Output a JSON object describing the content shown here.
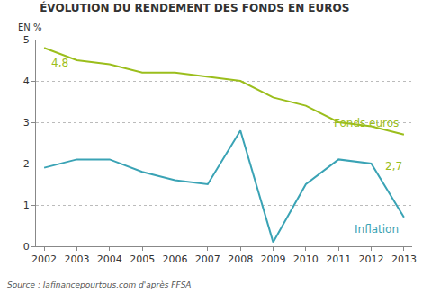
{
  "chart_data": {
    "type": "line",
    "title": "ÉVOLUTION DU RENDEMENT DES FONDS EN EUROS",
    "ylabel": "EN %",
    "source": "Source : lafinancepourtous.com d'après FFSA",
    "categories": [
      "2002",
      "2003",
      "2004",
      "2005",
      "2006",
      "2007",
      "2008",
      "2009",
      "2010",
      "2011",
      "2012",
      "2013"
    ],
    "series": [
      {
        "name": "Fonds euros",
        "color": "#9bbe1c",
        "values": [
          4.8,
          4.5,
          4.4,
          4.2,
          4.2,
          4.1,
          4.0,
          3.6,
          3.4,
          3.0,
          2.9,
          2.7
        ],
        "value_labels": [
          "4,8",
          null,
          null,
          null,
          null,
          null,
          null,
          null,
          null,
          null,
          null,
          "2,7"
        ]
      },
      {
        "name": "Inflation",
        "color": "#3aa3b5",
        "values": [
          1.9,
          2.1,
          2.1,
          1.8,
          1.6,
          1.5,
          2.8,
          0.1,
          1.5,
          2.1,
          2.0,
          0.7
        ]
      }
    ],
    "ylim": [
      0,
      5
    ],
    "yticks": [
      0,
      1,
      2,
      3,
      4,
      5
    ],
    "grid": true,
    "data_labels": true
  }
}
